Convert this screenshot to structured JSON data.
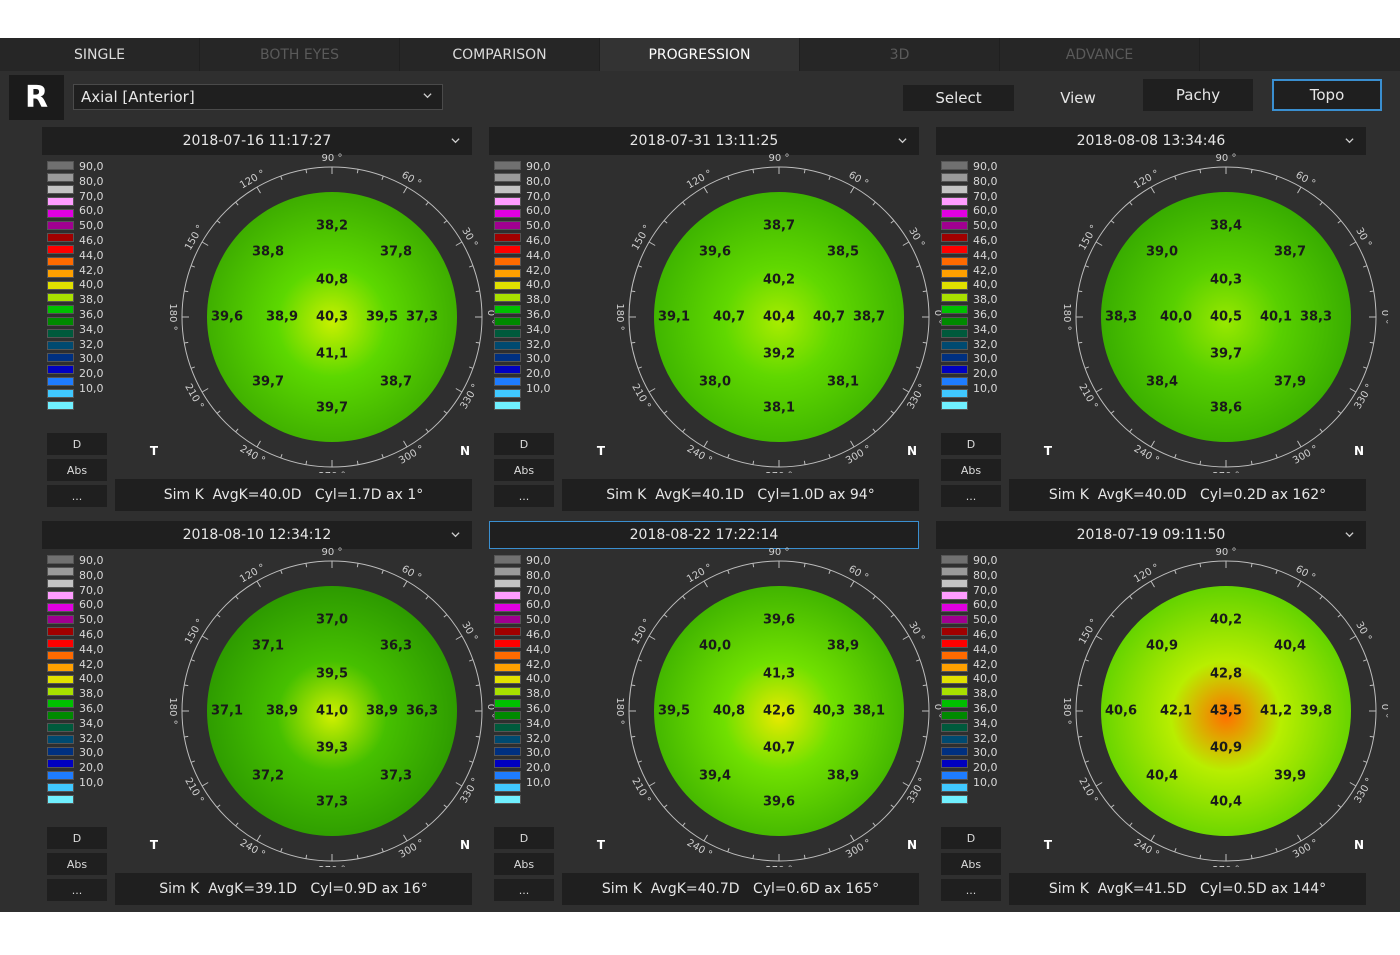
{
  "tabs": [
    {
      "label": "SINGLE",
      "state": "normal"
    },
    {
      "label": "BOTH EYES",
      "state": "disabled"
    },
    {
      "label": "COMPARISON",
      "state": "normal"
    },
    {
      "label": "PROGRESSION",
      "state": "active"
    },
    {
      "label": "3D",
      "state": "disabled"
    },
    {
      "label": "ADVANCE",
      "state": "disabled"
    }
  ],
  "toolbar": {
    "eye": "R",
    "map_type": "Axial [Anterior]",
    "select_label": "Select",
    "view_label": "View",
    "pachy_label": "Pachy",
    "topo_label": "Topo"
  },
  "scale": {
    "labels": [
      "90,0",
      "80,0",
      "70,0",
      "60,0",
      "50,0",
      "46,0",
      "44,0",
      "42,0",
      "40,0",
      "38,0",
      "36,0",
      "34,0",
      "32,0",
      "30,0",
      "20,0",
      "10,0"
    ],
    "colors": [
      "#707070",
      "#9a9a9a",
      "#c4c4c4",
      "#ff9cff",
      "#e000e0",
      "#a00090",
      "#a00000",
      "#ff0000",
      "#ff6a00",
      "#ffa000",
      "#e0e000",
      "#a8e000",
      "#00c000",
      "#008a00",
      "#005a3c",
      "#004a70",
      "#003080",
      "#0000c0",
      "#1e7cff",
      "#40c8ff",
      "#70f0ff"
    ],
    "btn_d": "D",
    "btn_abs": "Abs",
    "btn_more": "..."
  },
  "axes": {
    "deg_90": "90 °",
    "deg_60": "60 °",
    "deg_30": "30 °",
    "deg_0": "0 °",
    "deg_330": "330 °",
    "deg_300": "300 °",
    "deg_270": "270 °",
    "deg_240": "240 °",
    "deg_210": "210 °",
    "deg_180": "180 °",
    "deg_150": "150 °",
    "deg_120": "120 °",
    "t": "T",
    "n": "N"
  },
  "panels": [
    {
      "date": "2018-07-16 11:17:27",
      "selected": false,
      "c": "40,3",
      "r1": [
        "38,2",
        "40,8",
        "41,1",
        "39,7"
      ],
      "h": [
        "39,6",
        "38,9",
        "39,5",
        "37,3"
      ],
      "d": [
        "38,8",
        "37,8",
        "39,7",
        "38,7"
      ],
      "avgk": "Sim K  AvgK=40.0D",
      "cyl": "Cyl=1.7D ax 1°",
      "colors": {
        "edge": "#3aa800",
        "mid": "#5cd800",
        "center": "#c8f000"
      }
    },
    {
      "date": "2018-07-31 13:11:25",
      "selected": false,
      "c": "40,4",
      "r1": [
        "38,7",
        "40,2",
        "39,2",
        "38,1"
      ],
      "h": [
        "39,1",
        "40,7",
        "40,7",
        "38,7"
      ],
      "d": [
        "39,6",
        "38,5",
        "38,0",
        "38,1"
      ],
      "avgk": "Sim K  AvgK=40.1D",
      "cyl": "Cyl=1.0D ax 94°",
      "colors": {
        "edge": "#3ab000",
        "mid": "#60d800",
        "center": "#a8ec00"
      }
    },
    {
      "date": "2018-08-08 13:34:46",
      "selected": false,
      "c": "40,5",
      "r1": [
        "38,4",
        "40,3",
        "39,7",
        "38,6"
      ],
      "h": [
        "38,3",
        "40,0",
        "40,1",
        "38,3"
      ],
      "d": [
        "39,0",
        "38,7",
        "38,4",
        "37,9"
      ],
      "avgk": "Sim K  AvgK=40.0D",
      "cyl": "Cyl=0.2D ax 162°",
      "colors": {
        "edge": "#34a800",
        "mid": "#58d000",
        "center": "#98e800"
      }
    },
    {
      "date": "2018-08-10 12:34:12",
      "selected": false,
      "c": "41,0",
      "r1": [
        "37,0",
        "39,5",
        "39,3",
        "37,3"
      ],
      "h": [
        "37,1",
        "38,9",
        "38,9",
        "36,3"
      ],
      "d": [
        "37,1",
        "36,3",
        "37,2",
        "37,3"
      ],
      "avgk": "Sim K  AvgK=39.1D",
      "cyl": "Cyl=0.9D ax 16°",
      "colors": {
        "edge": "#2a9600",
        "mid": "#46c000",
        "center": "#d0f000"
      }
    },
    {
      "date": "2018-08-22 17:22:14",
      "selected": true,
      "c": "42,6",
      "r1": [
        "39,6",
        "41,3",
        "40,7",
        "39,6"
      ],
      "h": [
        "39,5",
        "40,8",
        "40,3",
        "38,1"
      ],
      "d": [
        "40,0",
        "38,9",
        "39,4",
        "38,9"
      ],
      "avgk": "Sim K  AvgK=40.7D",
      "cyl": "Cyl=0.6D ax 165°",
      "colors": {
        "edge": "#3cb000",
        "mid": "#70e000",
        "center": "#e8ea00"
      }
    },
    {
      "date": "2018-07-19 09:11:50",
      "selected": false,
      "c": "43,5",
      "r1": [
        "40,2",
        "42,8",
        "40,9",
        "40,4"
      ],
      "h": [
        "40,6",
        "42,1",
        "41,2",
        "39,8"
      ],
      "d": [
        "40,9",
        "40,4",
        "40,4",
        "39,9"
      ],
      "avgk": "Sim K  AvgK=41.5D",
      "cyl": "Cyl=0.5D ax 144°",
      "colors": {
        "edge": "#5ad000",
        "mid": "#b8ee00",
        "center": "#ff7000"
      }
    }
  ]
}
